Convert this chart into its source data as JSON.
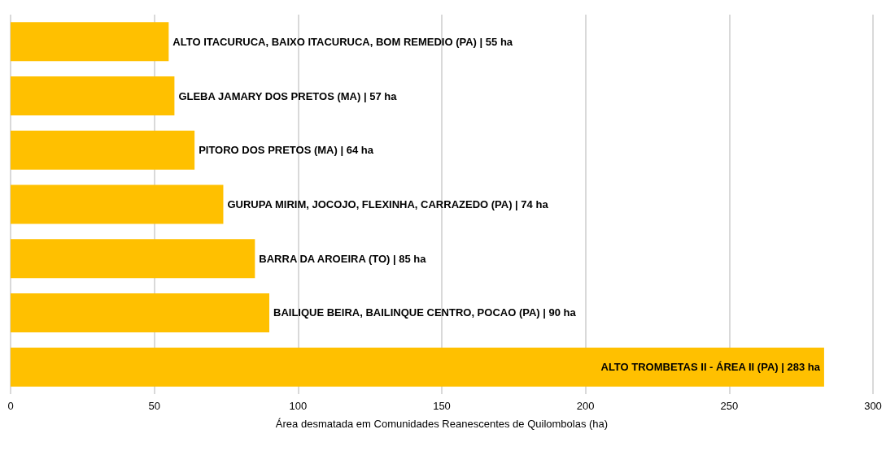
{
  "chart_data": {
    "type": "bar",
    "orientation": "horizontal",
    "xlabel": "Área desmatada em Comunidades Reanescentes de Quilombolas (ha)",
    "categories": [
      null,
      null,
      null,
      null,
      null,
      null,
      null
    ],
    "values": [
      55,
      57,
      64,
      74,
      85,
      90,
      283
    ],
    "value_labels": [
      "ALTO ITACURUCA, BAIXO ITACURUCA, BOM REMEDIO (PA) | 55 ha",
      "GLEBA JAMARY DOS PRETOS (MA) | 57 ha",
      "PITORO DOS PRETOS (MA) | 64 ha",
      "GURUPA MIRIM, JOCOJO, FLEXINHA, CARRAZEDO (PA) | 74 ha",
      "BARRA DA AROEIRA (TO) | 85 ha",
      "BAILIQUE BEIRA, BAILINQUE CENTRO, POCAO (PA) | 90 ha",
      "ALTO TROMBETAS II - ÁREA II (PA) | 283 ha"
    ],
    "color": "#ffc000",
    "xlim": [
      0,
      300
    ],
    "xticks": [
      0,
      50,
      100,
      150,
      200,
      250,
      300
    ],
    "grid": "x",
    "tick_labels": "x"
  }
}
